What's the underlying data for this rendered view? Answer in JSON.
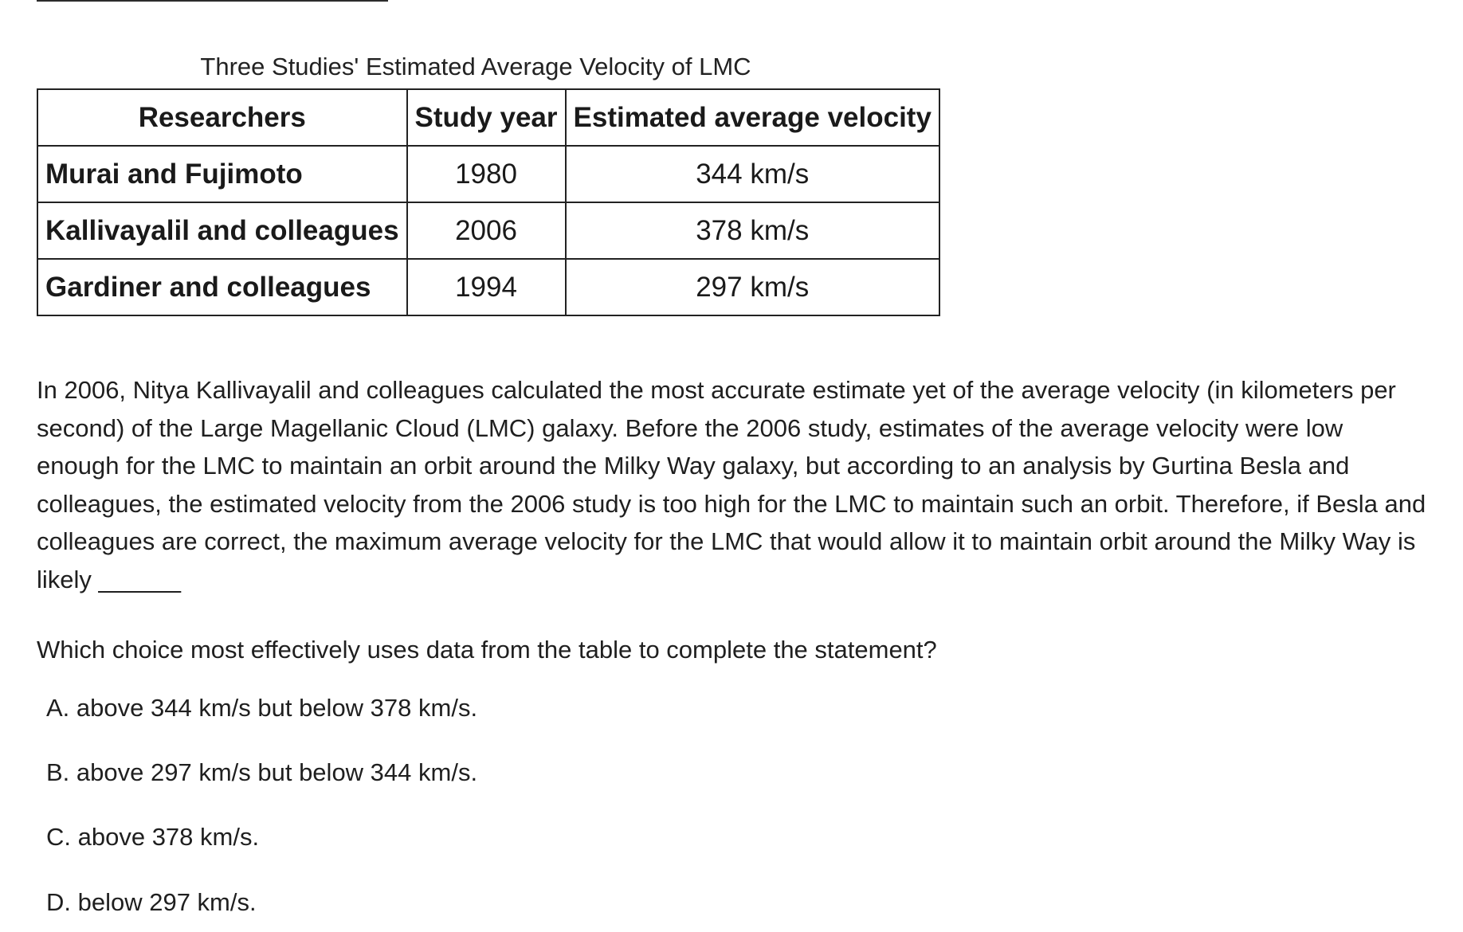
{
  "table": {
    "caption": "Three Studies' Estimated Average Velocity of LMC",
    "headers": [
      "Researchers",
      "Study year",
      "Estimated average velocity"
    ],
    "rows": [
      [
        "Murai and Fujimoto",
        "1980",
        "344 km/s"
      ],
      [
        "Kallivayalil and colleagues",
        "2006",
        "378 km/s"
      ],
      [
        "Gardiner and colleagues",
        "1994",
        "297 km/s"
      ]
    ]
  },
  "passage": "In 2006, Nitya Kallivayalil and colleagues calculated the most accurate estimate yet of the average velocity (in kilometers per second) of the Large Magellanic Cloud (LMC) galaxy. Before the 2006 study, estimates of the average velocity were low enough for the LMC to maintain an orbit around the Milky Way galaxy, but according to an analysis by Gurtina Besla and colleagues, the estimated velocity from the 2006 study is too high for the LMC to maintain such an orbit. Therefore, if Besla and colleagues are correct, the maximum average velocity for the LMC that would allow it to maintain orbit around the Milky Way is likely ______",
  "question": "Which choice most effectively uses data from the table to complete the statement?",
  "choices": [
    "A. above 344 km/s but below 378 km/s.",
    "B. above 297 km/s but below 344 km/s.",
    "C. above 378 km/s.",
    "D. below 297 km/s."
  ]
}
